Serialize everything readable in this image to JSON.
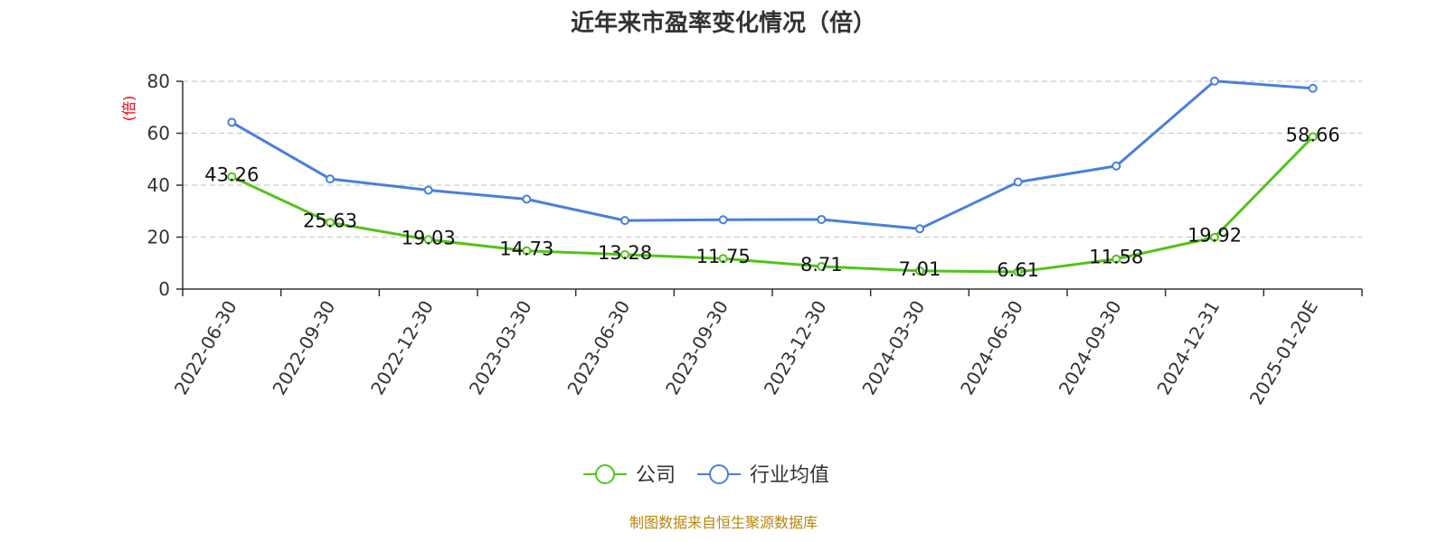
{
  "chart_data": {
    "type": "line",
    "title": "近年来市盈率变化情况（倍）",
    "ylabel": "(倍)",
    "xlabel": "",
    "ylim": [
      0,
      80
    ],
    "yticks": [
      0,
      20,
      40,
      60,
      80
    ],
    "grid": true,
    "legend_position": "bottom-center",
    "categories": [
      "2022-06-30",
      "2022-09-30",
      "2022-12-30",
      "2023-03-30",
      "2023-06-30",
      "2023-09-30",
      "2023-12-30",
      "2024-03-30",
      "2024-06-30",
      "2024-09-30",
      "2024-12-31",
      "2025-01-20E"
    ],
    "series": [
      {
        "name": "公司",
        "color": "#52c41a",
        "values": [
          43.26,
          25.63,
          19.03,
          14.73,
          13.28,
          11.75,
          8.71,
          7.01,
          6.61,
          11.58,
          19.92,
          58.66
        ],
        "data_labels": [
          "43.26",
          "25.63",
          "19.03",
          "14.73",
          "13.28",
          "11.75",
          "8.71",
          "7.01",
          "6.61",
          "11.58",
          "19.92",
          "58.66"
        ]
      },
      {
        "name": "行业均值",
        "color": "#4a7fdc",
        "values": [
          64.2,
          42.4,
          38.1,
          34.6,
          26.4,
          26.7,
          26.8,
          23.2,
          41.2,
          47.4,
          80.1,
          77.3
        ]
      }
    ]
  },
  "source": "制图数据来自恒生聚源数据库"
}
